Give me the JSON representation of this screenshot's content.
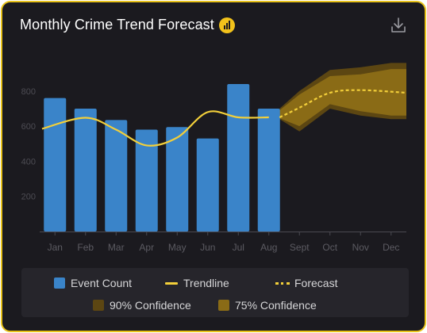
{
  "chart_data": {
    "type": "bar",
    "title": "Monthly Crime Trend Forecast",
    "categories": [
      "Jan",
      "Feb",
      "Mar",
      "Apr",
      "May",
      "Jun",
      "Jul",
      "Aug",
      "Sept",
      "Oct",
      "Nov",
      "Dec"
    ],
    "series": [
      {
        "name": "Event Count",
        "type": "bar",
        "values": [
          760,
          700,
          635,
          580,
          595,
          530,
          840,
          700,
          null,
          null,
          null,
          null
        ]
      },
      {
        "name": "Trendline",
        "type": "line",
        "values": [
          585,
          648,
          580,
          490,
          535,
          680,
          650,
          650,
          null,
          null,
          null,
          null
        ]
      },
      {
        "name": "Forecast",
        "type": "line",
        "style": "dashed",
        "values": [
          null,
          null,
          null,
          null,
          null,
          null,
          null,
          650,
          705,
          790,
          805,
          790
        ]
      }
    ],
    "bands": [
      {
        "name": "90% Confidence",
        "color": "#5c4612",
        "lower": [
          null,
          null,
          null,
          null,
          null,
          null,
          null,
          640,
          570,
          700,
          660,
          640
        ],
        "upper": [
          null,
          null,
          null,
          null,
          null,
          null,
          null,
          700,
          800,
          920,
          935,
          960
        ]
      },
      {
        "name": "75% Confidence",
        "color": "#8a6b16",
        "lower": [
          null,
          null,
          null,
          null,
          null,
          null,
          null,
          645,
          600,
          725,
          685,
          660
        ],
        "upper": [
          null,
          null,
          null,
          null,
          null,
          null,
          null,
          690,
          780,
          885,
          895,
          925
        ]
      }
    ],
    "yticks": [
      200,
      400,
      600,
      800
    ],
    "ylim": [
      0,
      1000
    ],
    "xlabel": "",
    "ylabel": "",
    "grid": false,
    "legend": "bottom",
    "colors": {
      "bar": "#3a84c9",
      "trend": "#f2cf3a",
      "forecast": "#f2cf3a"
    }
  },
  "legend": {
    "event_count": "Event Count",
    "trendline": "Trendline",
    "forecast": "Forecast",
    "conf90": "90% Confidence",
    "conf75": "75% Confidence"
  },
  "icons": {
    "badge": "bar-chart-badge-icon",
    "download": "download-icon"
  }
}
